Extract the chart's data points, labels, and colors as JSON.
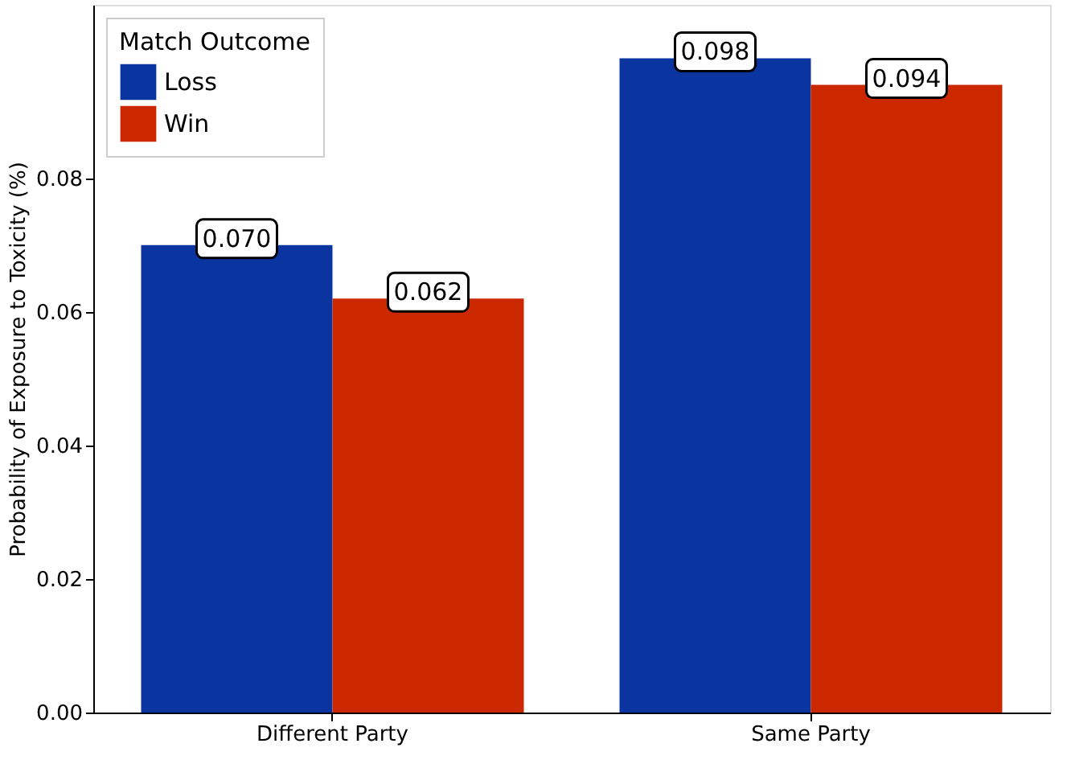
{
  "chart_data": {
    "type": "bar",
    "ylabel": "Probability of Exposure to Toxicity (%)",
    "categories": [
      "Different Party",
      "Same Party"
    ],
    "legend_title": "Match Outcome",
    "series": [
      {
        "name": "Loss",
        "color": "#0a35a0",
        "values": [
          0.07,
          0.098
        ],
        "value_labels": [
          "0.070",
          "0.098"
        ],
        "errors": [
          0.0005,
          0.0005
        ]
      },
      {
        "name": "Win",
        "color": "#cc2800",
        "values": [
          0.062,
          0.094
        ],
        "value_labels": [
          "0.062",
          "0.094"
        ],
        "errors": [
          0.0005,
          0.0005
        ]
      }
    ],
    "ylim": [
      0,
      0.106
    ],
    "yticks": [
      {
        "value": 0,
        "label": "0.00"
      },
      {
        "value": 0.02,
        "label": "0.02"
      },
      {
        "value": 0.04,
        "label": "0.04"
      },
      {
        "value": 0.06,
        "label": "0.06"
      },
      {
        "value": 0.08,
        "label": "0.08"
      }
    ],
    "legend": "top left",
    "grid": false
  }
}
